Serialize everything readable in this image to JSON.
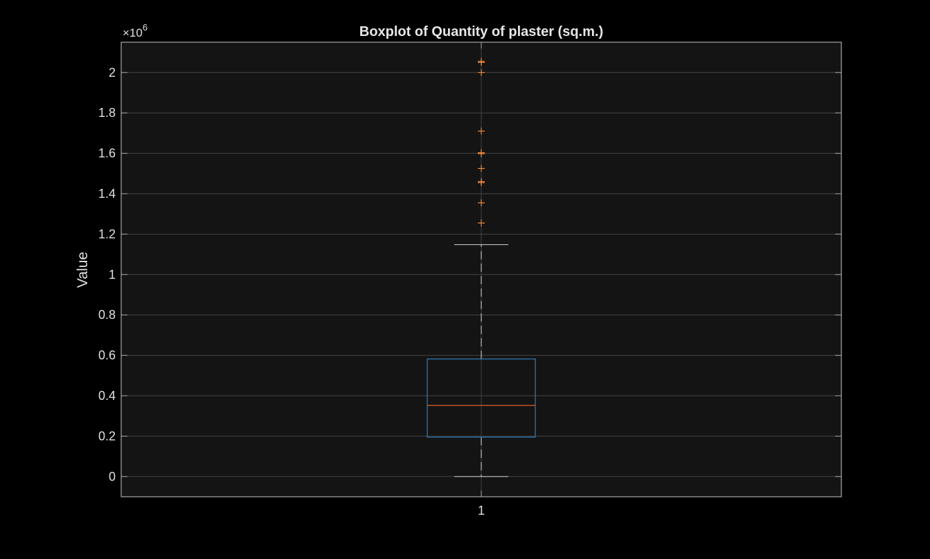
{
  "chart_data": {
    "type": "boxplot",
    "title": "Boxplot of Quantity of plaster (sq.m.)",
    "xlabel": "",
    "ylabel": "Value",
    "y_exponent_label": "×10",
    "y_exponent_power": "6",
    "y_scale_factor": 1000000,
    "categories": [
      "1"
    ],
    "ylim": [
      -0.1,
      2.15
    ],
    "yticks": [
      0,
      0.2,
      0.4,
      0.6,
      0.8,
      1,
      1.2,
      1.4,
      1.6,
      1.8,
      2
    ],
    "ytick_labels": [
      "0",
      "0.2",
      "0.4",
      "0.6",
      "0.8",
      "1",
      "1.2",
      "1.4",
      "1.6",
      "1.8",
      "2"
    ],
    "grid": true,
    "box": {
      "whisker_low": 0,
      "q1": 0.195,
      "median": 0.352,
      "q3": 0.582,
      "whisker_high": 1.148,
      "outliers": [
        1.255,
        1.355,
        1.455,
        1.46,
        1.525,
        1.598,
        1.603,
        1.71,
        2.0,
        2.05,
        2.055
      ]
    },
    "colors": {
      "background": "#000000",
      "axes_background": "#141414",
      "axes_edge": "#a8a8a8",
      "grid": "#444444",
      "box": "#2f7fc1",
      "median": "#e0622a",
      "whisker": "#c0c0c0",
      "outlier": "#f08a3c"
    }
  }
}
